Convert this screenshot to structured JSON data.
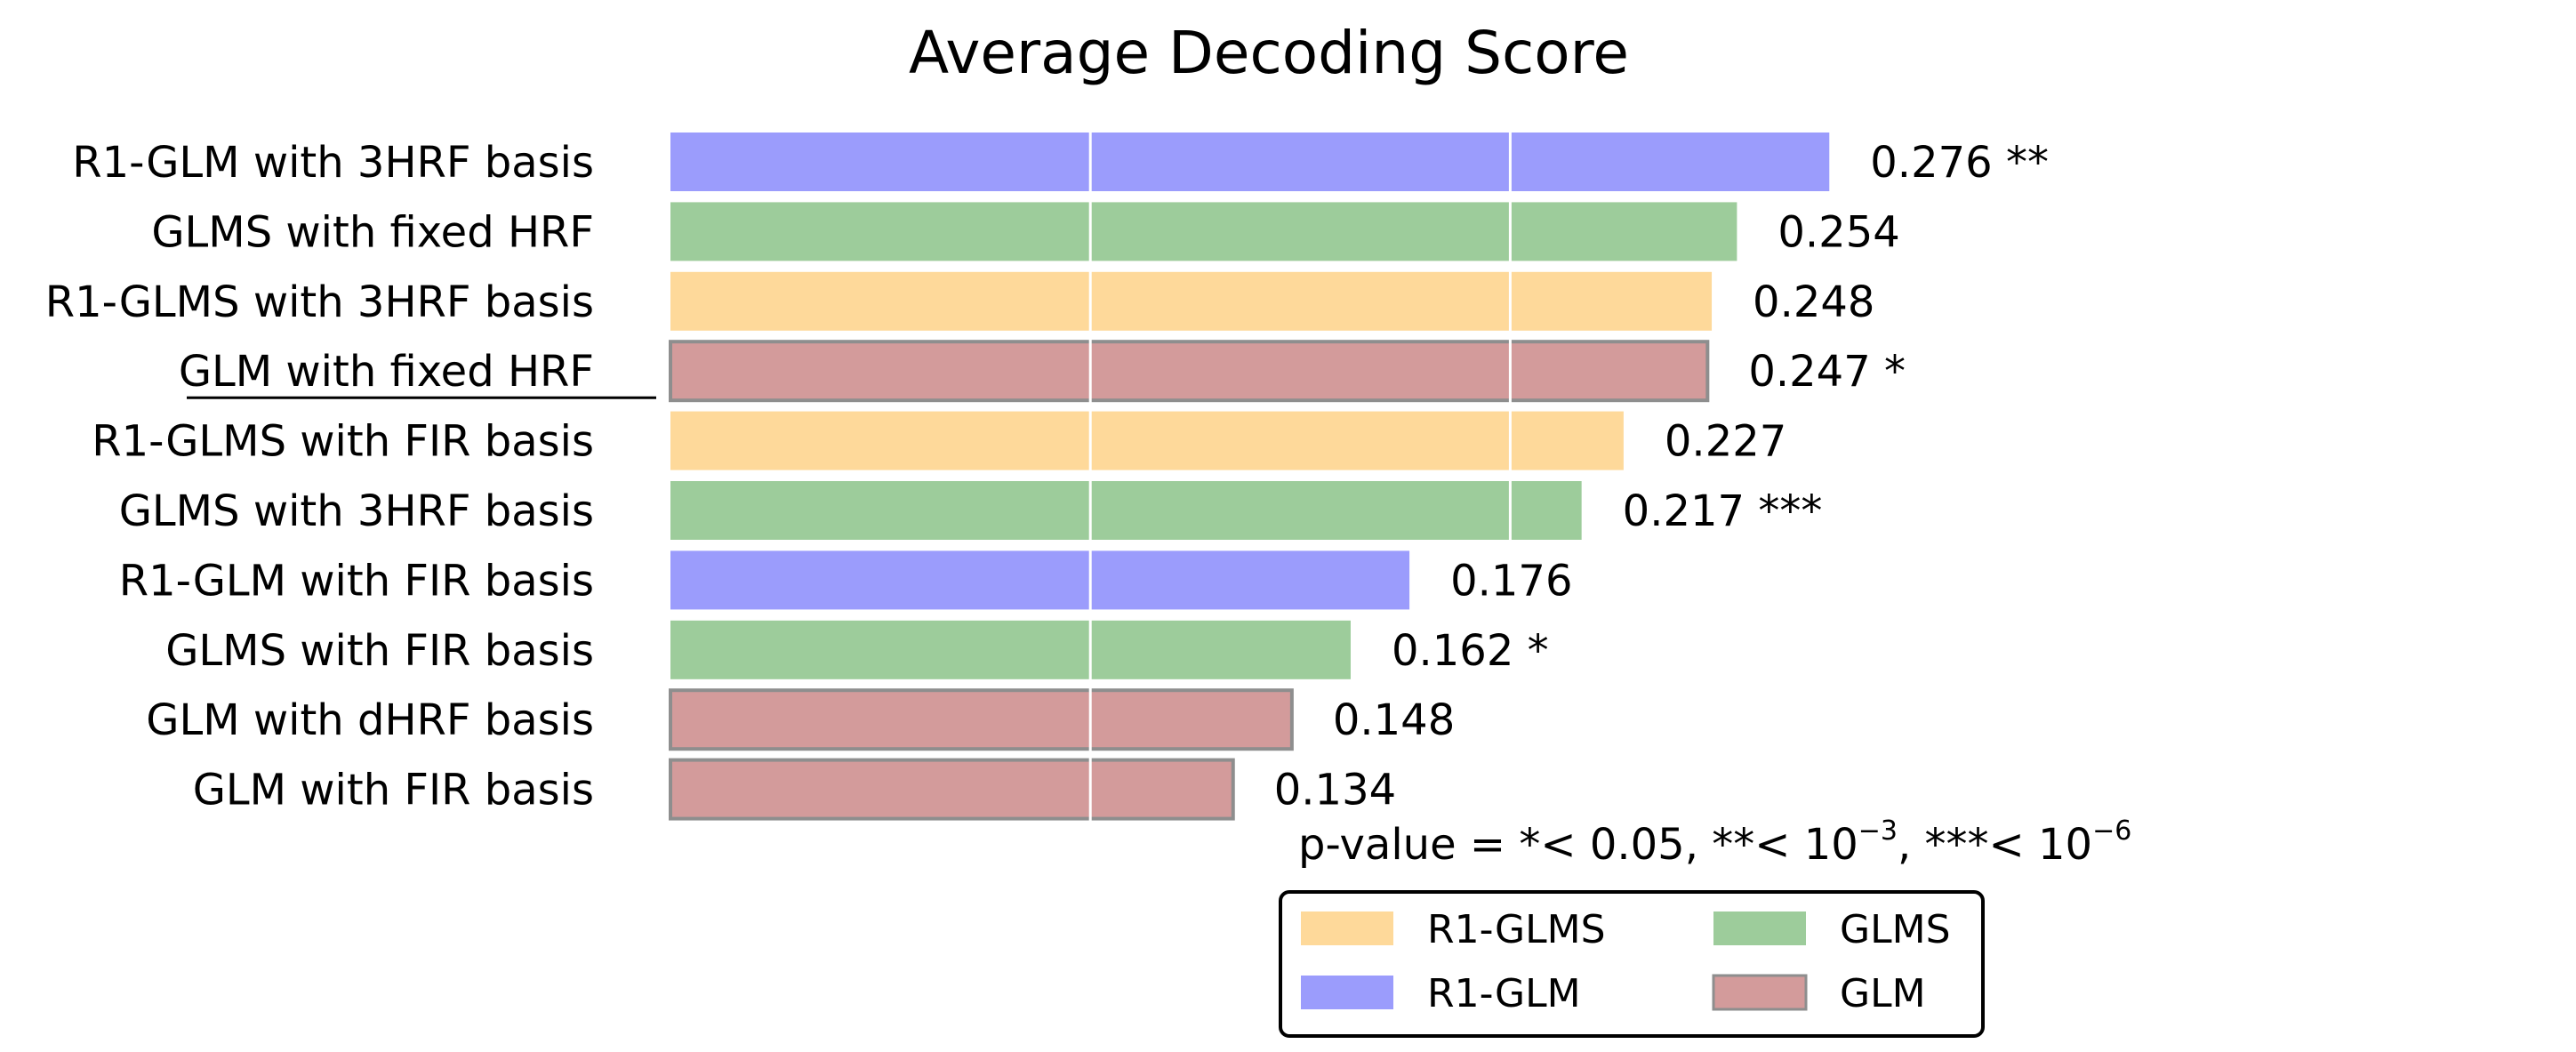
{
  "chart_data": {
    "type": "bar",
    "orientation": "horizontal",
    "title": "Average Decoding Score",
    "xlabel": "",
    "ylabel": "",
    "xlim": [
      0,
      0.3
    ],
    "grid": "vertical lines",
    "categories": [
      "R1-GLM with 3HRF basis",
      "GLMS with fixed HRF",
      "R1-GLMS with 3HRF basis",
      "GLM with fixed HRF",
      "R1-GLMS with FIR basis",
      "GLMS with 3HRF basis",
      "R1-GLM with FIR basis",
      "GLMS with FIR basis",
      "GLM with dHRF basis",
      "GLM with FIR basis"
    ],
    "values": [
      0.276,
      0.254,
      0.248,
      0.247,
      0.227,
      0.217,
      0.176,
      0.162,
      0.148,
      0.134
    ],
    "value_labels": [
      "0.276 **",
      "0.254",
      "0.248",
      "0.247 *",
      "0.227",
      "0.217 ***",
      "0.176",
      "0.162 *",
      "0.148",
      "0.134"
    ],
    "groups": [
      "R1-GLM",
      "GLMS",
      "R1-GLMS",
      "GLM",
      "R1-GLMS",
      "GLMS",
      "R1-GLM",
      "GLMS",
      "GLM",
      "GLM"
    ],
    "underlined_category": "GLM with fixed HRF",
    "group_colors": {
      "R1-GLMS": "#fed99a",
      "R1-GLM": "#9b9cfc",
      "GLMS": "#9dcc9b",
      "GLM": "#d39b9b"
    },
    "legend": {
      "placement": "bottom-right",
      "entries": [
        "R1-GLMS",
        "GLMS",
        "R1-GLM",
        "GLM"
      ]
    },
    "annotation": {
      "parts": [
        "p-value = *< 0.05, **< 10",
        "−3",
        ", ***< 10",
        "−6"
      ]
    }
  }
}
